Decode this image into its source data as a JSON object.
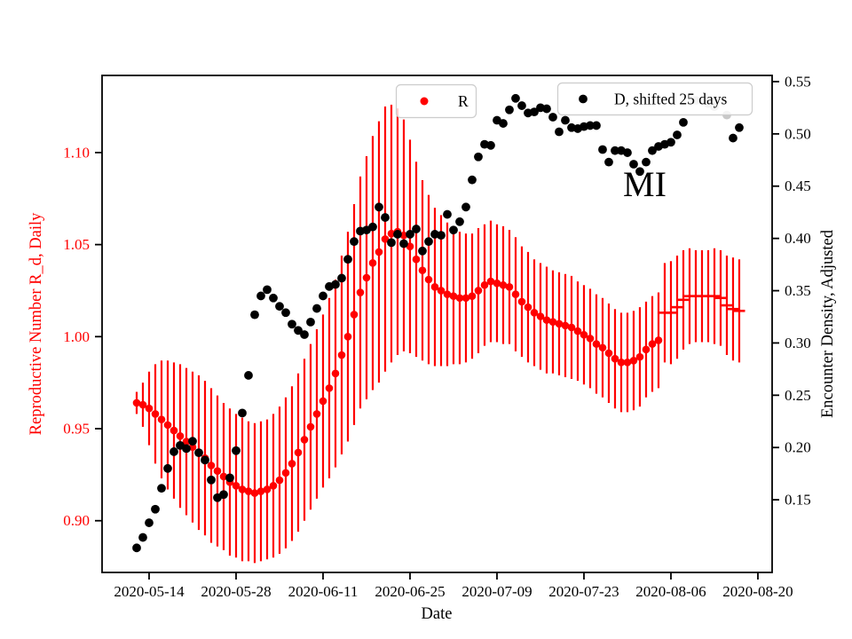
{
  "figure": {
    "background": "#ffffff"
  },
  "chart_data": {
    "type": "scatter",
    "title": "",
    "xlabel": "Date",
    "left_ylabel": "Reproductive Number R_d, Daily",
    "right_ylabel": "Encounter Density, Adjusted",
    "annotation": {
      "text": "MI"
    },
    "legend": [
      {
        "label": "R",
        "marker_color": "#ff0000"
      },
      {
        "label": "D, shifted 25 days",
        "marker_color": "#000000"
      }
    ],
    "x_axis": {
      "epoch_date": "2020-05-14",
      "xlim_days": [
        -7.57,
        100.29
      ],
      "ticks": [
        "2020-05-14",
        "2020-05-28",
        "2020-06-11",
        "2020-06-25",
        "2020-07-09",
        "2020-07-23",
        "2020-08-06",
        "2020-08-20"
      ]
    },
    "left_axis": {
      "color": "#ff0000",
      "ylim": [
        0.8719,
        1.1419
      ],
      "ticks": [
        0.9,
        0.95,
        1.0,
        1.05,
        1.1
      ]
    },
    "right_axis": {
      "color": "#000000",
      "ylim": [
        0.0805,
        0.5559
      ],
      "ticks": [
        0.15,
        0.2,
        0.25,
        0.3,
        0.35,
        0.4,
        0.45,
        0.5,
        0.55
      ]
    },
    "series": {
      "r": {
        "name": "R",
        "color": "#ff0000",
        "axis": "left",
        "points": [
          [
            "2020-05-12",
            0.964,
            0.006
          ],
          [
            "2020-05-13",
            0.963,
            0.012
          ],
          [
            "2020-05-14",
            0.961,
            0.02
          ],
          [
            "2020-05-15",
            0.958,
            0.027
          ],
          [
            "2020-05-16",
            0.955,
            0.032
          ],
          [
            "2020-05-17",
            0.952,
            0.035
          ],
          [
            "2020-05-18",
            0.949,
            0.037
          ],
          [
            "2020-05-19",
            0.946,
            0.039
          ],
          [
            "2020-05-20",
            0.943,
            0.04
          ],
          [
            "2020-05-21",
            0.94,
            0.041
          ],
          [
            "2020-05-22",
            0.937,
            0.042
          ],
          [
            "2020-05-23",
            0.934,
            0.042
          ],
          [
            "2020-05-24",
            0.93,
            0.042
          ],
          [
            "2020-05-25",
            0.927,
            0.041
          ],
          [
            "2020-05-26",
            0.924,
            0.04
          ],
          [
            "2020-05-27",
            0.921,
            0.04
          ],
          [
            "2020-05-28",
            0.919,
            0.039
          ],
          [
            "2020-05-29",
            0.917,
            0.039
          ],
          [
            "2020-05-30",
            0.916,
            0.038
          ],
          [
            "2020-05-31",
            0.915,
            0.038
          ],
          [
            "2020-06-01",
            0.916,
            0.038
          ],
          [
            "2020-06-02",
            0.917,
            0.038
          ],
          [
            "2020-06-03",
            0.919,
            0.039
          ],
          [
            "2020-06-04",
            0.922,
            0.04
          ],
          [
            "2020-06-05",
            0.926,
            0.041
          ],
          [
            "2020-06-06",
            0.931,
            0.042
          ],
          [
            "2020-06-07",
            0.937,
            0.043
          ],
          [
            "2020-06-08",
            0.944,
            0.044
          ],
          [
            "2020-06-09",
            0.951,
            0.045
          ],
          [
            "2020-06-10",
            0.958,
            0.046
          ],
          [
            "2020-06-11",
            0.965,
            0.047
          ],
          [
            "2020-06-12",
            0.972,
            0.049
          ],
          [
            "2020-06-13",
            0.98,
            0.051
          ],
          [
            "2020-06-14",
            0.99,
            0.054
          ],
          [
            "2020-06-15",
            1.0,
            0.057
          ],
          [
            "2020-06-16",
            1.012,
            0.06
          ],
          [
            "2020-06-17",
            1.024,
            0.063
          ],
          [
            "2020-06-18",
            1.032,
            0.066
          ],
          [
            "2020-06-19",
            1.04,
            0.069
          ],
          [
            "2020-06-20",
            1.046,
            0.071
          ],
          [
            "2020-06-21",
            1.053,
            0.072
          ],
          [
            "2020-06-22",
            1.056,
            0.07
          ],
          [
            "2020-06-23",
            1.057,
            0.067
          ],
          [
            "2020-06-24",
            1.055,
            0.063
          ],
          [
            "2020-06-25",
            1.049,
            0.058
          ],
          [
            "2020-06-26",
            1.042,
            0.053
          ],
          [
            "2020-06-27",
            1.036,
            0.049
          ],
          [
            "2020-06-28",
            1.031,
            0.046
          ],
          [
            "2020-06-29",
            1.027,
            0.043
          ],
          [
            "2020-06-30",
            1.025,
            0.041
          ],
          [
            "2020-07-01",
            1.023,
            0.039
          ],
          [
            "2020-07-02",
            1.022,
            0.037
          ],
          [
            "2020-07-03",
            1.021,
            0.036
          ],
          [
            "2020-07-04",
            1.021,
            0.035
          ],
          [
            "2020-07-05",
            1.022,
            0.034
          ],
          [
            "2020-07-06",
            1.025,
            0.034
          ],
          [
            "2020-07-07",
            1.028,
            0.033
          ],
          [
            "2020-07-08",
            1.03,
            0.033
          ],
          [
            "2020-07-09",
            1.029,
            0.032
          ],
          [
            "2020-07-10",
            1.028,
            0.032
          ],
          [
            "2020-07-11",
            1.027,
            0.031
          ],
          [
            "2020-07-12",
            1.023,
            0.031
          ],
          [
            "2020-07-13",
            1.019,
            0.03
          ],
          [
            "2020-07-14",
            1.016,
            0.03
          ],
          [
            "2020-07-15",
            1.013,
            0.029
          ],
          [
            "2020-07-16",
            1.011,
            0.029
          ],
          [
            "2020-07-17",
            1.009,
            0.029
          ],
          [
            "2020-07-18",
            1.008,
            0.028
          ],
          [
            "2020-07-19",
            1.007,
            0.028
          ],
          [
            "2020-07-20",
            1.006,
            0.028
          ],
          [
            "2020-07-21",
            1.005,
            0.028
          ],
          [
            "2020-07-22",
            1.003,
            0.027
          ],
          [
            "2020-07-23",
            1.001,
            0.027
          ],
          [
            "2020-07-24",
            0.999,
            0.027
          ],
          [
            "2020-07-25",
            0.996,
            0.027
          ],
          [
            "2020-07-26",
            0.994,
            0.027
          ],
          [
            "2020-07-27",
            0.991,
            0.027
          ],
          [
            "2020-07-28",
            0.988,
            0.027
          ],
          [
            "2020-07-29",
            0.986,
            0.027
          ],
          [
            "2020-07-30",
            0.986,
            0.027
          ],
          [
            "2020-07-31",
            0.987,
            0.027
          ],
          [
            "2020-08-01",
            0.989,
            0.027
          ],
          [
            "2020-08-02",
            0.993,
            0.026
          ],
          [
            "2020-08-03",
            0.996,
            0.026
          ],
          [
            "2020-08-04",
            0.998,
            0.026
          ]
        ],
        "dash_points": [
          [
            "2020-08-05",
            1.013,
            0.027
          ],
          [
            "2020-08-06",
            1.013,
            0.028
          ],
          [
            "2020-08-07",
            1.016,
            0.028
          ],
          [
            "2020-08-08",
            1.02,
            0.027
          ],
          [
            "2020-08-09",
            1.022,
            0.026
          ],
          [
            "2020-08-10",
            1.022,
            0.025
          ],
          [
            "2020-08-11",
            1.022,
            0.025
          ],
          [
            "2020-08-12",
            1.022,
            0.025
          ],
          [
            "2020-08-13",
            1.022,
            0.026
          ],
          [
            "2020-08-14",
            1.021,
            0.026
          ],
          [
            "2020-08-15",
            1.017,
            0.027
          ],
          [
            "2020-08-16",
            1.015,
            0.028
          ],
          [
            "2020-08-17",
            1.014,
            0.028
          ]
        ]
      },
      "d": {
        "name": "D, shifted 25 days",
        "color": "#000000",
        "muted_color": "#c8c8c8",
        "axis": "right",
        "points": [
          [
            "2020-05-12",
            0.104
          ],
          [
            "2020-05-13",
            0.114
          ],
          [
            "2020-05-14",
            0.128
          ],
          [
            "2020-05-15",
            0.141
          ],
          [
            "2020-05-16",
            0.161
          ],
          [
            "2020-05-17",
            0.18
          ],
          [
            "2020-05-18",
            0.196
          ],
          [
            "2020-05-19",
            0.202
          ],
          [
            "2020-05-20",
            0.199
          ],
          [
            "2020-05-21",
            0.206
          ],
          [
            "2020-05-22",
            0.195
          ],
          [
            "2020-05-23",
            0.188
          ],
          [
            "2020-05-24",
            0.169
          ],
          [
            "2020-05-25",
            0.152
          ],
          [
            "2020-05-26",
            0.155
          ],
          [
            "2020-05-27",
            0.171
          ],
          [
            "2020-05-28",
            0.197
          ],
          [
            "2020-05-29",
            0.233
          ],
          [
            "2020-05-30",
            0.269
          ],
          [
            "2020-05-31",
            0.327
          ],
          [
            "2020-06-01",
            0.345
          ],
          [
            "2020-06-02",
            0.351
          ],
          [
            "2020-06-03",
            0.343
          ],
          [
            "2020-06-04",
            0.335
          ],
          [
            "2020-06-05",
            0.329
          ],
          [
            "2020-06-06",
            0.318
          ],
          [
            "2020-06-07",
            0.312
          ],
          [
            "2020-06-08",
            0.308
          ],
          [
            "2020-06-09",
            0.32
          ],
          [
            "2020-06-10",
            0.333
          ],
          [
            "2020-06-11",
            0.345
          ],
          [
            "2020-06-12",
            0.354
          ],
          [
            "2020-06-13",
            0.356
          ],
          [
            "2020-06-14",
            0.362
          ],
          [
            "2020-06-15",
            0.38
          ],
          [
            "2020-06-16",
            0.397
          ],
          [
            "2020-06-17",
            0.407
          ],
          [
            "2020-06-18",
            0.408
          ],
          [
            "2020-06-19",
            0.411
          ],
          [
            "2020-06-20",
            0.43
          ],
          [
            "2020-06-21",
            0.42
          ],
          [
            "2020-06-22",
            0.396
          ],
          [
            "2020-06-23",
            0.404
          ],
          [
            "2020-06-24",
            0.395
          ],
          [
            "2020-06-25",
            0.404
          ],
          [
            "2020-06-26",
            0.409
          ],
          [
            "2020-06-27",
            0.388
          ],
          [
            "2020-06-28",
            0.397
          ],
          [
            "2020-06-29",
            0.404
          ],
          [
            "2020-06-30",
            0.403
          ],
          [
            "2020-07-01",
            0.423
          ],
          [
            "2020-07-02",
            0.408
          ],
          [
            "2020-07-03",
            0.416
          ],
          [
            "2020-07-04",
            0.43
          ],
          [
            "2020-07-05",
            0.456
          ],
          [
            "2020-07-06",
            0.478
          ],
          [
            "2020-07-07",
            0.49
          ],
          [
            "2020-07-08",
            0.489
          ],
          [
            "2020-07-09",
            0.513
          ],
          [
            "2020-07-10",
            0.51
          ],
          [
            "2020-07-11",
            0.523
          ],
          [
            "2020-07-12",
            0.534
          ],
          [
            "2020-07-13",
            0.527
          ],
          [
            "2020-07-14",
            0.52
          ],
          [
            "2020-07-15",
            0.521
          ],
          [
            "2020-07-16",
            0.525
          ],
          [
            "2020-07-17",
            0.524
          ],
          [
            "2020-07-18",
            0.516
          ],
          [
            "2020-07-19",
            0.502
          ],
          [
            "2020-07-20",
            0.513
          ],
          [
            "2020-07-21",
            0.506
          ],
          [
            "2020-07-22",
            0.505
          ],
          [
            "2020-07-23",
            0.507
          ],
          [
            "2020-07-24",
            0.508
          ],
          [
            "2020-07-25",
            0.508
          ],
          [
            "2020-07-26",
            0.485
          ],
          [
            "2020-07-27",
            0.473
          ],
          [
            "2020-07-28",
            0.484
          ],
          [
            "2020-07-29",
            0.484
          ],
          [
            "2020-07-30",
            0.482
          ],
          [
            "2020-07-31",
            0.471
          ],
          [
            "2020-08-01",
            0.464
          ],
          [
            "2020-08-02",
            0.473
          ],
          [
            "2020-08-03",
            0.484
          ],
          [
            "2020-08-04",
            0.488
          ],
          [
            "2020-08-05",
            0.49
          ],
          [
            "2020-08-06",
            0.492
          ],
          [
            "2020-08-07",
            0.499
          ],
          [
            "2020-08-08",
            0.511
          ],
          [
            "2020-08-10",
            0.532,
            "muted"
          ],
          [
            "2020-08-12",
            0.529,
            "muted"
          ],
          [
            "2020-08-13",
            0.526,
            "muted"
          ],
          [
            "2020-08-15",
            0.518,
            "muted"
          ],
          [
            "2020-08-16",
            0.496
          ],
          [
            "2020-08-17",
            0.506
          ]
        ]
      }
    },
    "layout": {
      "grid": false,
      "legend_position": "upper center / upper right",
      "marker": "dot"
    }
  }
}
